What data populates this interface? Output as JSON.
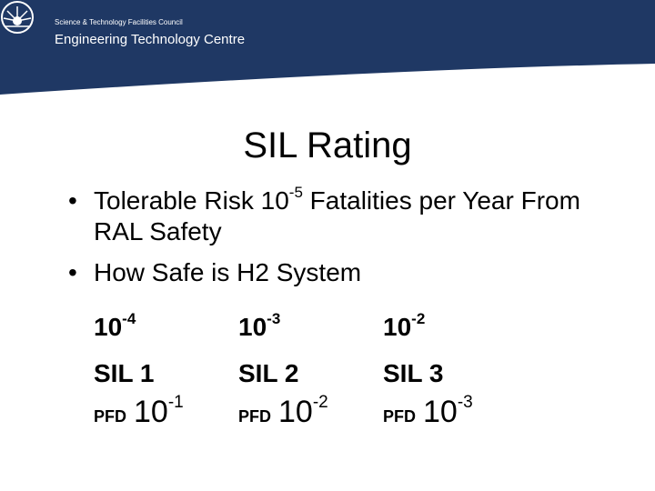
{
  "header": {
    "organisation": "Science & Technology Facilities Council",
    "centre": "Engineering Technology Centre",
    "logo_icon": "sunburst-logo-icon",
    "banner_color": "#1f3864"
  },
  "title": "SIL Rating",
  "bullets": [
    {
      "symbol": "•",
      "text_before": "Tolerable Risk 10",
      "superscript": "-5",
      "text_after": " Fatalities per Year From RAL Safety"
    },
    {
      "symbol": "•",
      "text": "How Safe is H2 System"
    }
  ],
  "sil_table": [
    {
      "base": "10",
      "exponent": "-4",
      "sil": "SIL 1",
      "pfd_label": "PFD",
      "pfd_base": "10",
      "pfd_exponent": "-1"
    },
    {
      "base": "10",
      "exponent": "-3",
      "sil": "SIL 2",
      "pfd_label": "PFD",
      "pfd_base": "10",
      "pfd_exponent": "-2"
    },
    {
      "base": "10",
      "exponent": "-2",
      "sil": "SIL 3",
      "pfd_label": "PFD",
      "pfd_base": "10",
      "pfd_exponent": "-3"
    }
  ]
}
